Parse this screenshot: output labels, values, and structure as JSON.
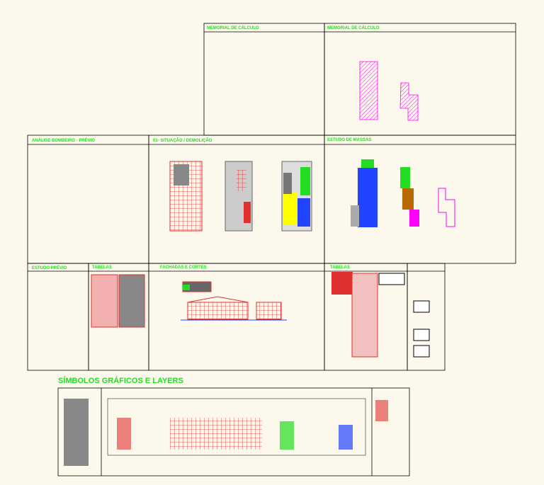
{
  "panels": [
    {
      "title": "MEMORIAL DE CÁLCULO"
    },
    {
      "title": "MEMORIAL DE CÁLCULO"
    },
    {
      "title": "ANÁLISE BOMBEIRO - PRÉVIO"
    },
    {
      "title": "01- SITUAÇÃO / DEMOLIÇÃO"
    },
    {
      "title": "ESTUDO DE MASSAS"
    },
    {
      "title": "ESTUDO PRÉVIO"
    },
    {
      "title": "TABELAS"
    },
    {
      "title": "FACHADAS E CORTES"
    },
    {
      "title": "TABELAS"
    }
  ],
  "symbols": {
    "title": "SÍMBOLOS GRÁFICOS E LAYERS"
  }
}
